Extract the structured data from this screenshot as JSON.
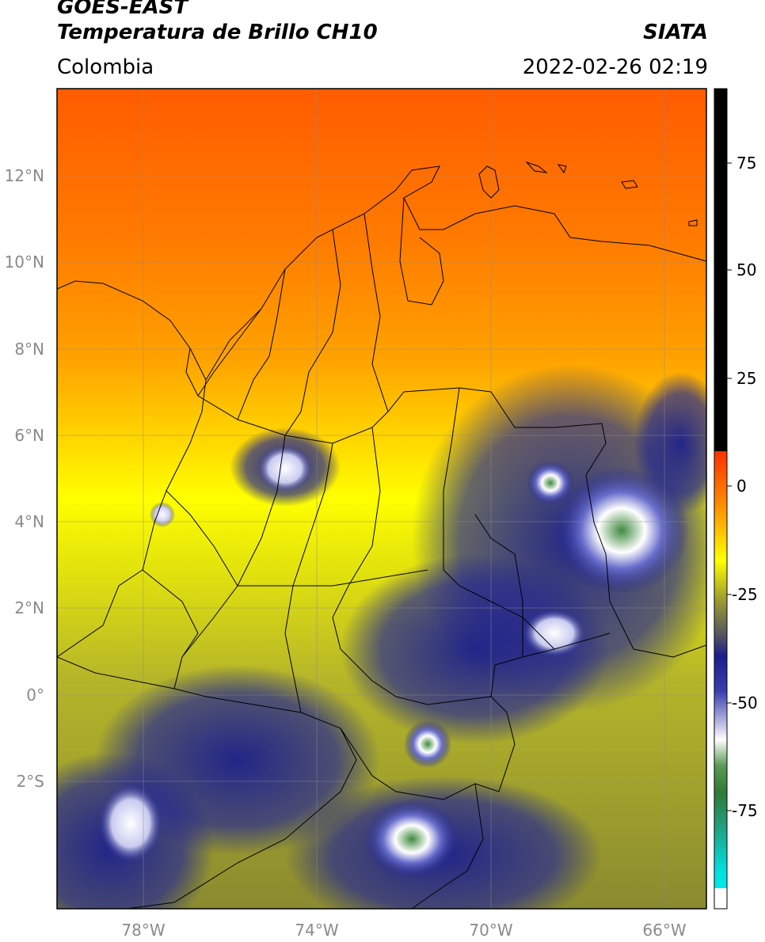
{
  "header": {
    "satellite": "GOES-EAST",
    "product": "Temperatura de Brillo CH10",
    "region": "Colombia",
    "organization": "SIATA",
    "datetime": "2022-02-26 02:19"
  },
  "map": {
    "lat_labels": [
      "12°N",
      "10°N",
      "8°N",
      "6°N",
      "4°N",
      "2°N",
      "0°",
      "2°S"
    ],
    "lon_labels": [
      "78°W",
      "74°W",
      "70°W",
      "66°W"
    ]
  },
  "colorbar": {
    "ticks": [
      "75",
      "50",
      "25",
      "0",
      "-25",
      "-50",
      "-75"
    ],
    "colors": {
      "warm_top": "#ff5a00",
      "orange": "#ff9a00",
      "yellow": "#ffff00",
      "olive": "#a6a62a",
      "navy": "#1b1f8c",
      "white": "#ffffff",
      "green": "#2f8a3a",
      "cyan": "#00dede",
      "black": "#000000"
    }
  }
}
